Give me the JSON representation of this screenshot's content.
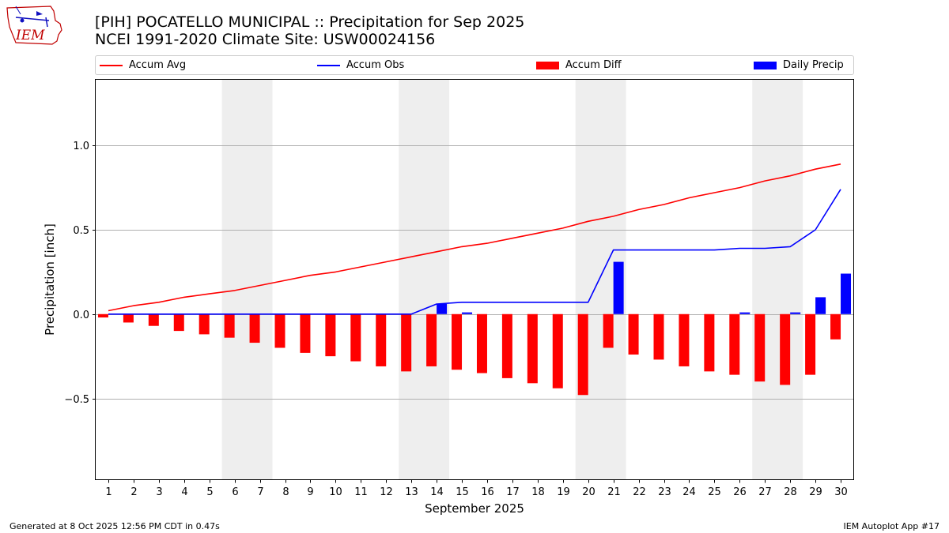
{
  "title": {
    "line1": "[PIH] POCATELLO MUNICIPAL :: Precipitation for Sep 2025",
    "line2": "NCEI 1991-2020 Climate Site: USW00024156"
  },
  "logo": {
    "text": "IEM"
  },
  "legend": {
    "items": [
      {
        "label": "Accum Avg",
        "kind": "line",
        "color": "#ff0000"
      },
      {
        "label": "Accum Obs",
        "kind": "line",
        "color": "#0000ff"
      },
      {
        "label": "Accum Diff",
        "kind": "bar",
        "color": "#ff0000"
      },
      {
        "label": "Daily Precip",
        "kind": "bar",
        "color": "#0000ff"
      }
    ]
  },
  "footer": {
    "left": "Generated at 8 Oct 2025 12:56 PM CDT in 0.47s",
    "right": "IEM Autoplot App #17"
  },
  "chart_data": {
    "type": "bar",
    "xlabel": "September 2025",
    "ylabel": "Precipitation [inch]",
    "xlim": [
      0.5,
      30.5
    ],
    "ylim": [
      -0.98,
      1.39
    ],
    "yticks": [
      1.0,
      0.5,
      0.0,
      -0.5
    ],
    "ytick_labels": [
      "1.0",
      "0.5",
      "0.0",
      "−0.5"
    ],
    "grid": "y",
    "weekend_shading": [
      [
        5.5,
        7.5
      ],
      [
        12.5,
        14.5
      ],
      [
        19.5,
        21.5
      ],
      [
        26.5,
        28.5
      ]
    ],
    "categories": [
      1,
      2,
      3,
      4,
      5,
      6,
      7,
      8,
      9,
      10,
      11,
      12,
      13,
      14,
      15,
      16,
      17,
      18,
      19,
      20,
      21,
      22,
      23,
      24,
      25,
      26,
      27,
      28,
      29,
      30
    ],
    "series": [
      {
        "name": "Accum Avg",
        "type": "line",
        "color": "#ff0000",
        "values": [
          0.02,
          0.05,
          0.07,
          0.1,
          0.12,
          0.14,
          0.17,
          0.2,
          0.23,
          0.25,
          0.28,
          0.31,
          0.34,
          0.37,
          0.4,
          0.42,
          0.45,
          0.48,
          0.51,
          0.55,
          0.58,
          0.62,
          0.65,
          0.69,
          0.72,
          0.75,
          0.79,
          0.82,
          0.86,
          0.89
        ]
      },
      {
        "name": "Accum Obs",
        "type": "line",
        "color": "#0000ff",
        "values": [
          0,
          0,
          0,
          0,
          0,
          0,
          0,
          0,
          0,
          0,
          0,
          0,
          0,
          0.06,
          0.07,
          0.07,
          0.07,
          0.07,
          0.07,
          0.07,
          0.38,
          0.38,
          0.38,
          0.38,
          0.38,
          0.39,
          0.39,
          0.4,
          0.5,
          0.74
        ]
      },
      {
        "name": "Accum Diff",
        "type": "bar",
        "color": "#ff0000",
        "values": [
          -0.02,
          -0.05,
          -0.07,
          -0.1,
          -0.12,
          -0.14,
          -0.17,
          -0.2,
          -0.23,
          -0.25,
          -0.28,
          -0.31,
          -0.34,
          -0.31,
          -0.33,
          -0.35,
          -0.38,
          -0.41,
          -0.44,
          -0.48,
          -0.2,
          -0.24,
          -0.27,
          -0.31,
          -0.34,
          -0.36,
          -0.4,
          -0.42,
          -0.36,
          -0.15
        ]
      },
      {
        "name": "Daily Precip",
        "type": "bar",
        "color": "#0000ff",
        "values": [
          0,
          0,
          0,
          0,
          0,
          0,
          0,
          0,
          0,
          0,
          0,
          0,
          0,
          0.06,
          0.01,
          0,
          0,
          0,
          0,
          0,
          0.31,
          0,
          0,
          0,
          0,
          0.01,
          0,
          0.01,
          0.1,
          0.24
        ]
      }
    ]
  }
}
